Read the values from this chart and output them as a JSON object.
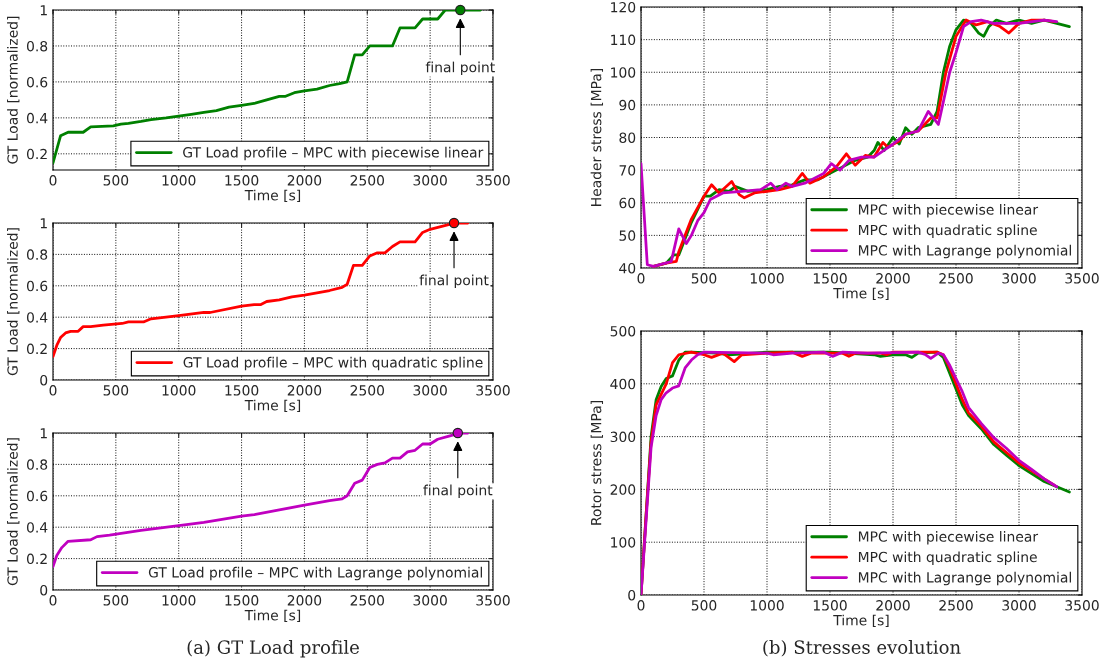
{
  "chart_data": [
    {
      "type": "line",
      "xlabel": "Time [s]",
      "ylabel": "GT Load [normalized]",
      "xlim": [
        0,
        3500
      ],
      "xticks": [
        0,
        500,
        1000,
        1500,
        2000,
        2500,
        3000,
        3500
      ],
      "ylim": [
        0.11,
        1
      ],
      "yticks": [
        0.2,
        0.4,
        0.6,
        0.8,
        1
      ],
      "grid": true,
      "legend": "bottom right",
      "line_style": "solid",
      "series": [
        {
          "name": "GT Load profile – MPC with piecewise linear",
          "color": "#008000",
          "x": [
            0,
            60,
            120,
            240,
            300,
            480,
            540,
            600,
            700,
            780,
            900,
            1000,
            1100,
            1200,
            1300,
            1400,
            1500,
            1600,
            1700,
            1800,
            1850,
            1920,
            2000,
            2100,
            2200,
            2280,
            2340,
            2400,
            2460,
            2520,
            2700,
            2760,
            2880,
            2940,
            3060,
            3120,
            3400
          ],
          "values": [
            0.15,
            0.3,
            0.32,
            0.32,
            0.35,
            0.355,
            0.365,
            0.37,
            0.38,
            0.39,
            0.4,
            0.41,
            0.42,
            0.43,
            0.44,
            0.46,
            0.47,
            0.48,
            0.5,
            0.52,
            0.52,
            0.54,
            0.55,
            0.56,
            0.58,
            0.59,
            0.6,
            0.75,
            0.75,
            0.8,
            0.8,
            0.9,
            0.9,
            0.95,
            0.95,
            1.0,
            1.0
          ]
        },
        {
          "type": "scatter",
          "color": "#008000",
          "x": [
            3240
          ],
          "values": [
            1.0
          ],
          "marker": "circle"
        }
      ],
      "annotations": [
        "final point"
      ]
    },
    {
      "type": "line",
      "xlabel": "Time [s]",
      "ylabel": "GT Load [normalized]",
      "xlim": [
        0,
        3500
      ],
      "xticks": [
        0,
        500,
        1000,
        1500,
        2000,
        2500,
        3000,
        3500
      ],
      "ylim": [
        0,
        1
      ],
      "yticks": [
        0,
        0.2,
        0.4,
        0.6,
        0.8,
        1
      ],
      "grid": true,
      "legend": "bottom right",
      "line_style": "solid",
      "series": [
        {
          "name": "GT Load profile – MPC with quadratic spline",
          "color": "#ff0000",
          "x": [
            0,
            30,
            60,
            100,
            140,
            200,
            240,
            300,
            400,
            550,
            600,
            720,
            780,
            1000,
            1200,
            1250,
            1500,
            1600,
            1650,
            1700,
            1800,
            1900,
            2000,
            2200,
            2300,
            2340,
            2390,
            2460,
            2520,
            2580,
            2640,
            2700,
            2760,
            2880,
            2940,
            3000,
            3100,
            3200,
            3300
          ],
          "values": [
            0.15,
            0.22,
            0.27,
            0.3,
            0.31,
            0.31,
            0.34,
            0.34,
            0.35,
            0.36,
            0.37,
            0.37,
            0.39,
            0.41,
            0.43,
            0.43,
            0.47,
            0.48,
            0.48,
            0.5,
            0.51,
            0.53,
            0.54,
            0.57,
            0.59,
            0.61,
            0.73,
            0.73,
            0.79,
            0.81,
            0.81,
            0.85,
            0.88,
            0.88,
            0.94,
            0.96,
            0.98,
            1.0,
            1.0
          ]
        },
        {
          "type": "scatter",
          "color": "#ff0000",
          "x": [
            3190
          ],
          "values": [
            1.0
          ],
          "marker": "circle"
        }
      ],
      "annotations": [
        "final point"
      ]
    },
    {
      "type": "line",
      "xlabel": "Time [s]",
      "ylabel": "GT Load [normalized]",
      "xlim": [
        0,
        3500
      ],
      "xticks": [
        0,
        500,
        1000,
        1500,
        2000,
        2500,
        3000,
        3500
      ],
      "ylim": [
        0,
        1
      ],
      "yticks": [
        0,
        0.2,
        0.4,
        0.6,
        0.8,
        1
      ],
      "grid": true,
      "legend": "bottom right",
      "line_style": "solid",
      "series": [
        {
          "name": "GT Load profile – MPC with Lagrange polynomial",
          "color": "#c000c0",
          "x": [
            0,
            30,
            70,
            120,
            300,
            350,
            450,
            700,
            1000,
            1200,
            1500,
            1600,
            1800,
            2000,
            2200,
            2300,
            2340,
            2400,
            2460,
            2520,
            2580,
            2640,
            2700,
            2760,
            2820,
            2880,
            2940,
            3000,
            3060,
            3150,
            3240,
            3300
          ],
          "values": [
            0.15,
            0.22,
            0.27,
            0.31,
            0.32,
            0.34,
            0.35,
            0.38,
            0.41,
            0.43,
            0.47,
            0.48,
            0.51,
            0.54,
            0.57,
            0.58,
            0.6,
            0.68,
            0.7,
            0.78,
            0.8,
            0.81,
            0.84,
            0.84,
            0.88,
            0.89,
            0.93,
            0.93,
            0.96,
            0.98,
            1.0,
            1.0
          ]
        },
        {
          "type": "scatter",
          "color": "#c000c0",
          "x": [
            3220
          ],
          "values": [
            1.0
          ],
          "marker": "circle"
        }
      ],
      "annotations": [
        "final point",
        "(a) GT Load profile"
      ]
    },
    {
      "type": "line",
      "xlabel": "Time [s]",
      "ylabel": "Header stress [MPa]",
      "xlim": [
        0,
        3500
      ],
      "xticks": [
        0,
        500,
        1000,
        1500,
        2000,
        2500,
        3000,
        3500
      ],
      "ylim": [
        40,
        120
      ],
      "yticks": [
        40,
        50,
        60,
        70,
        80,
        90,
        100,
        110,
        120
      ],
      "grid": true,
      "legend": "bottom right",
      "line_style": "solid",
      "series": [
        {
          "name": "MPC with piecewise linear",
          "color": "#008000",
          "x": [
            100,
            200,
            260,
            300,
            350,
            400,
            450,
            500,
            550,
            620,
            700,
            750,
            850,
            1000,
            1100,
            1200,
            1300,
            1400,
            1500,
            1600,
            1700,
            1800,
            1850,
            1880,
            1930,
            2000,
            2050,
            2100,
            2150,
            2200,
            2300,
            2350,
            2400,
            2450,
            2500,
            2560,
            2620,
            2680,
            2720,
            2760,
            2820,
            2900,
            3000,
            3100,
            3200,
            3300,
            3400
          ],
          "values": [
            40.5,
            41.5,
            44,
            44,
            49,
            54,
            58,
            62,
            62,
            64,
            63.5,
            65,
            63.5,
            64,
            65,
            65.5,
            67,
            67,
            69,
            71,
            73,
            74,
            76,
            78.5,
            76,
            80,
            78,
            83,
            81,
            83,
            84,
            88,
            100,
            108,
            113,
            116,
            115,
            112,
            111,
            114,
            116,
            115,
            116,
            115,
            116,
            115,
            114
          ]
        },
        {
          "name": "MPC with quadratic spline",
          "color": "#ff0000",
          "x": [
            100,
            200,
            280,
            300,
            350,
            400,
            500,
            560,
            620,
            720,
            780,
            820,
            900,
            1000,
            1100,
            1200,
            1280,
            1340,
            1450,
            1550,
            1630,
            1700,
            1780,
            1850,
            1920,
            1960,
            2050,
            2100,
            2200,
            2300,
            2350,
            2420,
            2500,
            2580,
            2660,
            2750,
            2850,
            2920,
            3000,
            3100,
            3200,
            3280
          ],
          "values": [
            40.5,
            41.5,
            42,
            45,
            50,
            55,
            62,
            65.5,
            63,
            66.5,
            62.5,
            61.5,
            63,
            63.5,
            64,
            65,
            69,
            66,
            68,
            71,
            75,
            71.5,
            74.5,
            74,
            78.5,
            77,
            79,
            81,
            82,
            86,
            86,
            100,
            111,
            116,
            114.5,
            115.5,
            114,
            112,
            115,
            116,
            116,
            115.5
          ]
        },
        {
          "name": "MPC with Lagrange polynomial",
          "color": "#c000c0",
          "x": [
            0,
            50,
            100,
            240,
            300,
            360,
            400,
            450,
            500,
            550,
            650,
            800,
            950,
            1030,
            1080,
            1150,
            1200,
            1300,
            1450,
            1510,
            1580,
            1650,
            1750,
            1850,
            2000,
            2100,
            2200,
            2280,
            2360,
            2400,
            2450,
            2500,
            2560,
            2620,
            2700,
            2800,
            3000,
            3200,
            3300
          ],
          "values": [
            72,
            41,
            40.5,
            42,
            52,
            47.5,
            50,
            54.5,
            57,
            61,
            63,
            63.5,
            64,
            66,
            64,
            66,
            65,
            66,
            69,
            72,
            70,
            73,
            74,
            74,
            78,
            81,
            82,
            88,
            84,
            91,
            100,
            106,
            114,
            115.5,
            116,
            115,
            115,
            116,
            115.5
          ]
        }
      ]
    },
    {
      "type": "line",
      "xlabel": "Time [s]",
      "ylabel": "Rotor stress [MPa]",
      "xlim": [
        0,
        3500
      ],
      "xticks": [
        0,
        500,
        1000,
        1500,
        2000,
        2500,
        3000,
        3500
      ],
      "ylim": [
        0,
        500
      ],
      "yticks": [
        0,
        100,
        200,
        300,
        400,
        500
      ],
      "grid": true,
      "legend": "bottom right",
      "line_style": "solid",
      "series": [
        {
          "name": "MPC with piecewise linear",
          "color": "#008000",
          "x": [
            0,
            40,
            80,
            120,
            160,
            200,
            250,
            300,
            350,
            400,
            600,
            700,
            1000,
            1500,
            1850,
            1900,
            2000,
            2100,
            2150,
            2200,
            2350,
            2400,
            2450,
            2500,
            2550,
            2600,
            2700,
            2800,
            2900,
            3000,
            3100,
            3200,
            3300,
            3400
          ],
          "values": [
            0,
            150,
            300,
            370,
            395,
            410,
            415,
            445,
            460,
            460,
            458,
            455,
            460,
            460,
            455,
            452,
            455,
            455,
            450,
            458,
            460,
            450,
            420,
            390,
            360,
            340,
            315,
            285,
            265,
            245,
            230,
            215,
            205,
            195
          ]
        },
        {
          "name": "MPC with quadratic spline",
          "color": "#ff0000",
          "x": [
            0,
            40,
            80,
            120,
            200,
            250,
            300,
            400,
            500,
            560,
            650,
            740,
            800,
            1000,
            1200,
            1280,
            1350,
            1600,
            1650,
            1700,
            1900,
            1950,
            2000,
            2350,
            2400,
            2450,
            2500,
            2550,
            2600,
            2700,
            2800,
            2900,
            3000,
            3100,
            3200,
            3280
          ],
          "values": [
            0,
            150,
            290,
            360,
            400,
            440,
            455,
            460,
            455,
            450,
            458,
            442,
            455,
            458,
            460,
            452,
            458,
            458,
            452,
            458,
            458,
            455,
            460,
            460,
            455,
            430,
            400,
            370,
            345,
            320,
            290,
            270,
            250,
            235,
            220,
            208
          ]
        },
        {
          "name": "MPC with Lagrange polynomial",
          "color": "#c000c0",
          "x": [
            0,
            40,
            80,
            120,
            160,
            200,
            250,
            300,
            350,
            400,
            450,
            500,
            1000,
            1050,
            1200,
            1450,
            1520,
            1600,
            1800,
            2200,
            2260,
            2300,
            2360,
            2400,
            2450,
            2500,
            2550,
            2600,
            2700,
            2800,
            2900,
            3000,
            3100,
            3200,
            3300
          ],
          "values": [
            0,
            140,
            280,
            340,
            370,
            383,
            392,
            396,
            430,
            445,
            455,
            460,
            458,
            455,
            458,
            460,
            452,
            460,
            458,
            460,
            455,
            448,
            458,
            455,
            435,
            410,
            385,
            355,
            325,
            298,
            278,
            255,
            238,
            220,
            205
          ]
        }
      ],
      "annotations": [
        "(b) Stresses evolution"
      ]
    }
  ]
}
